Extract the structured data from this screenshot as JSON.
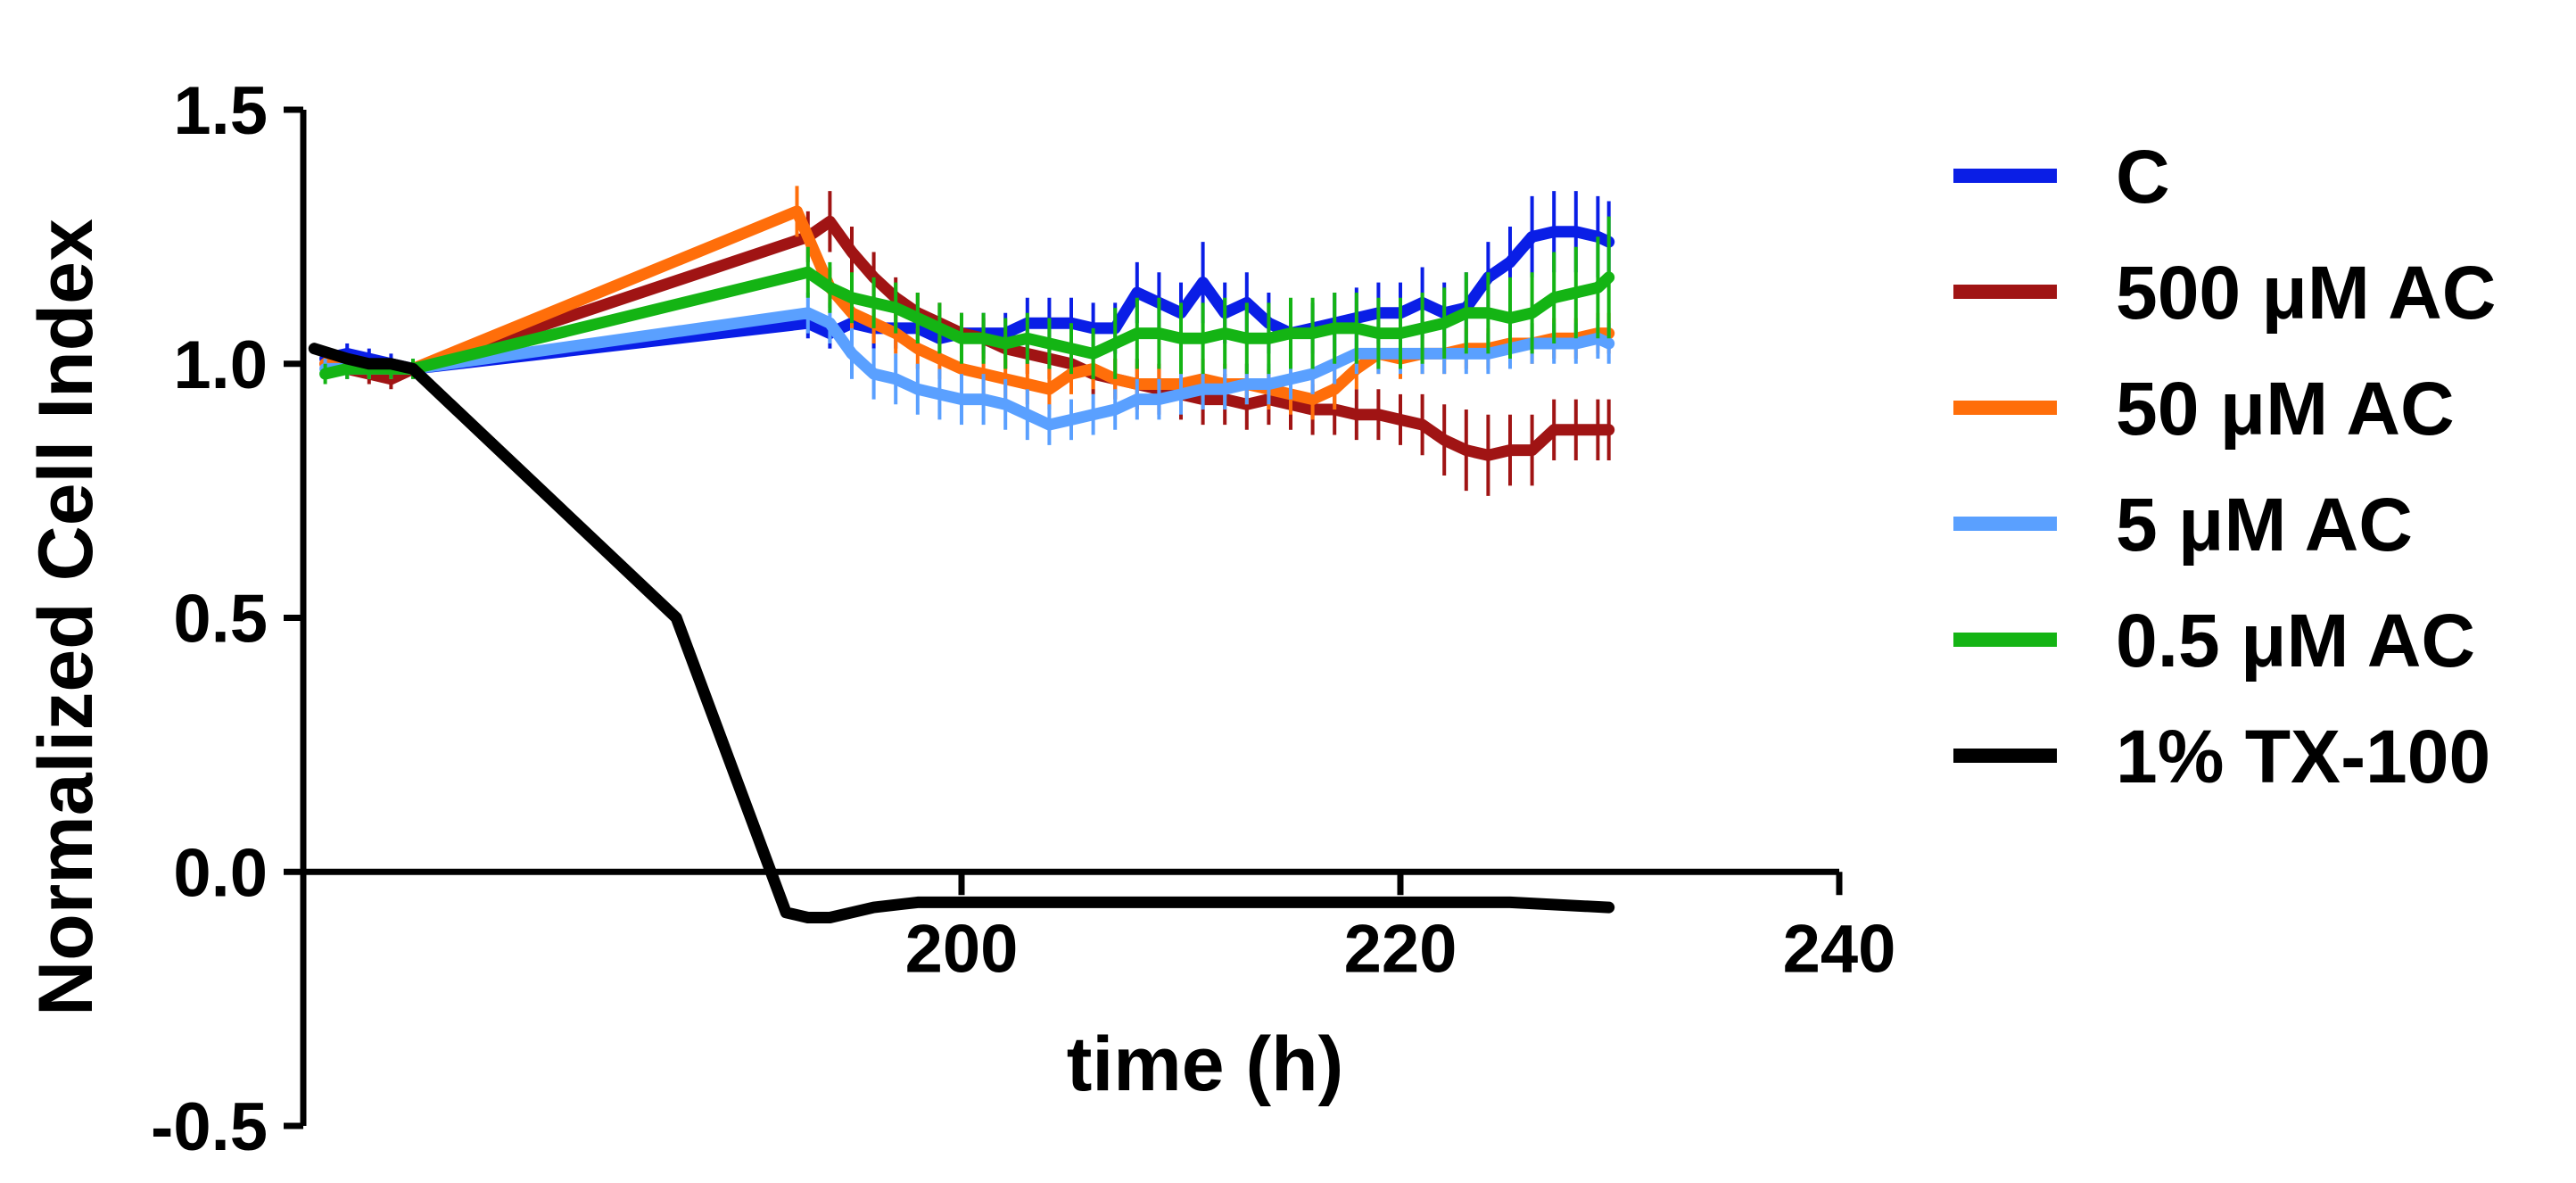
{
  "chart_data": {
    "type": "line",
    "title": "",
    "xlabel": "time (h)",
    "ylabel": "Normalized Cell Index",
    "xlim": [
      170,
      240
    ],
    "ylim": [
      -0.5,
      1.5
    ],
    "x_ticks": [
      200,
      220,
      240
    ],
    "x_tick_labels": [
      "200",
      "220",
      "240"
    ],
    "y_ticks": [
      -0.5,
      0.0,
      0.5,
      1.0,
      1.5
    ],
    "y_tick_labels": [
      "-0.5",
      "0.0",
      "0.5",
      "1.0",
      "1.5"
    ],
    "grid": false,
    "legend_position": "right",
    "series": [
      {
        "name": "C",
        "color": "#0a1ee6",
        "x": [
          171,
          172,
          173,
          174,
          175,
          193,
          194,
          195,
          196,
          197,
          198,
          199,
          200,
          201,
          202,
          203,
          204,
          205,
          206,
          207,
          208,
          209,
          210,
          211,
          212,
          213,
          214,
          215,
          216,
          217,
          218,
          219,
          220,
          221,
          222,
          223,
          224,
          225,
          226,
          227,
          228,
          229,
          229.5
        ],
        "y": [
          1.01,
          1.02,
          1.01,
          1.0,
          0.99,
          1.08,
          1.06,
          1.08,
          1.07,
          1.07,
          1.07,
          1.05,
          1.06,
          1.06,
          1.06,
          1.08,
          1.08,
          1.08,
          1.07,
          1.07,
          1.14,
          1.12,
          1.1,
          1.16,
          1.1,
          1.12,
          1.08,
          1.06,
          1.07,
          1.08,
          1.09,
          1.1,
          1.1,
          1.12,
          1.1,
          1.11,
          1.17,
          1.2,
          1.25,
          1.26,
          1.26,
          1.25,
          1.24
        ],
        "error": [
          0.02,
          0.02,
          0.02,
          0.02,
          0.01,
          0.03,
          0.03,
          0.04,
          0.04,
          0.04,
          0.04,
          0.04,
          0.04,
          0.04,
          0.04,
          0.05,
          0.05,
          0.05,
          0.05,
          0.05,
          0.06,
          0.06,
          0.06,
          0.08,
          0.06,
          0.06,
          0.06,
          0.05,
          0.05,
          0.06,
          0.06,
          0.06,
          0.06,
          0.07,
          0.06,
          0.07,
          0.07,
          0.07,
          0.08,
          0.08,
          0.08,
          0.08,
          0.08
        ]
      },
      {
        "name": "500 μM AC",
        "color": "#a01414",
        "x": [
          171,
          172,
          173,
          174,
          175,
          193,
          194,
          195,
          196,
          197,
          198,
          199,
          200,
          201,
          202,
          203,
          204,
          205,
          206,
          207,
          208,
          209,
          210,
          211,
          212,
          213,
          214,
          215,
          216,
          217,
          218,
          219,
          220,
          221,
          222,
          223,
          224,
          225,
          226,
          227,
          228,
          229,
          229.5
        ],
        "y": [
          1.0,
          0.99,
          0.98,
          0.97,
          0.99,
          1.25,
          1.28,
          1.22,
          1.17,
          1.13,
          1.1,
          1.08,
          1.06,
          1.05,
          1.03,
          1.02,
          1.01,
          1.0,
          0.98,
          0.97,
          0.96,
          0.95,
          0.94,
          0.93,
          0.93,
          0.92,
          0.93,
          0.92,
          0.91,
          0.91,
          0.9,
          0.9,
          0.89,
          0.88,
          0.85,
          0.83,
          0.82,
          0.83,
          0.83,
          0.87,
          0.87,
          0.87,
          0.87
        ],
        "error": [
          0.02,
          0.02,
          0.02,
          0.02,
          0.02,
          0.05,
          0.06,
          0.05,
          0.05,
          0.04,
          0.04,
          0.04,
          0.04,
          0.04,
          0.04,
          0.04,
          0.04,
          0.04,
          0.04,
          0.04,
          0.05,
          0.05,
          0.05,
          0.05,
          0.05,
          0.05,
          0.05,
          0.05,
          0.05,
          0.05,
          0.05,
          0.05,
          0.05,
          0.06,
          0.07,
          0.08,
          0.08,
          0.07,
          0.07,
          0.06,
          0.06,
          0.06,
          0.06
        ]
      },
      {
        "name": "50 μM AC",
        "color": "#ff6e0a",
        "x": [
          171,
          172,
          173,
          174,
          175,
          192.5,
          194,
          195,
          196,
          197,
          198,
          199,
          200,
          201,
          202,
          203,
          204,
          205,
          206,
          207,
          208,
          209,
          210,
          211,
          212,
          213,
          214,
          215,
          216,
          217,
          218,
          219,
          220,
          221,
          222,
          223,
          224,
          225,
          226,
          227,
          228,
          229,
          229.5
        ],
        "y": [
          1.0,
          1.0,
          0.99,
          0.99,
          0.99,
          1.3,
          1.15,
          1.1,
          1.08,
          1.06,
          1.03,
          1.01,
          0.99,
          0.98,
          0.97,
          0.96,
          0.95,
          0.98,
          0.99,
          0.97,
          0.96,
          0.96,
          0.96,
          0.97,
          0.96,
          0.96,
          0.95,
          0.94,
          0.93,
          0.95,
          0.99,
          1.02,
          1.01,
          1.02,
          1.02,
          1.03,
          1.03,
          1.04,
          1.04,
          1.05,
          1.05,
          1.06,
          1.06
        ],
        "error": [
          0.02,
          0.02,
          0.02,
          0.02,
          0.02,
          0.05,
          0.04,
          0.04,
          0.04,
          0.04,
          0.04,
          0.04,
          0.04,
          0.04,
          0.04,
          0.04,
          0.04,
          0.04,
          0.04,
          0.04,
          0.04,
          0.04,
          0.04,
          0.04,
          0.04,
          0.04,
          0.04,
          0.04,
          0.04,
          0.04,
          0.04,
          0.04,
          0.04,
          0.04,
          0.04,
          0.04,
          0.04,
          0.04,
          0.04,
          0.04,
          0.04,
          0.04,
          0.04
        ]
      },
      {
        "name": "5 μM AC",
        "color": "#5aa0ff",
        "x": [
          171,
          172,
          173,
          174,
          175,
          193,
          194,
          195,
          196,
          197,
          198,
          199,
          200,
          201,
          202,
          203,
          204,
          205,
          206,
          207,
          208,
          209,
          210,
          211,
          212,
          213,
          214,
          215,
          216,
          217,
          218,
          219,
          220,
          221,
          222,
          223,
          224,
          225,
          226,
          227,
          228,
          229,
          229.5
        ],
        "y": [
          0.99,
          0.99,
          0.99,
          0.99,
          0.99,
          1.1,
          1.08,
          1.02,
          0.98,
          0.97,
          0.95,
          0.94,
          0.93,
          0.93,
          0.92,
          0.9,
          0.88,
          0.89,
          0.9,
          0.91,
          0.93,
          0.93,
          0.94,
          0.95,
          0.95,
          0.96,
          0.96,
          0.97,
          0.98,
          1.0,
          1.02,
          1.02,
          1.02,
          1.02,
          1.02,
          1.02,
          1.02,
          1.03,
          1.04,
          1.04,
          1.04,
          1.05,
          1.04
        ],
        "error": [
          0.02,
          0.02,
          0.02,
          0.02,
          0.02,
          0.04,
          0.04,
          0.05,
          0.05,
          0.05,
          0.05,
          0.05,
          0.05,
          0.05,
          0.05,
          0.05,
          0.04,
          0.04,
          0.04,
          0.04,
          0.04,
          0.04,
          0.04,
          0.04,
          0.04,
          0.04,
          0.04,
          0.04,
          0.04,
          0.04,
          0.04,
          0.04,
          0.04,
          0.04,
          0.04,
          0.04,
          0.04,
          0.04,
          0.04,
          0.04,
          0.04,
          0.04,
          0.04
        ]
      },
      {
        "name": "0.5 μM AC",
        "color": "#14b414",
        "x": [
          171,
          172,
          173,
          174,
          175,
          193,
          194,
          195,
          196,
          197,
          198,
          199,
          200,
          201,
          202,
          203,
          204,
          205,
          206,
          207,
          208,
          209,
          210,
          211,
          212,
          213,
          214,
          215,
          216,
          217,
          218,
          219,
          220,
          221,
          222,
          223,
          224,
          225,
          226,
          227,
          228,
          229,
          229.5
        ],
        "y": [
          0.98,
          0.99,
          0.99,
          0.99,
          0.99,
          1.18,
          1.15,
          1.13,
          1.12,
          1.11,
          1.09,
          1.07,
          1.05,
          1.05,
          1.04,
          1.05,
          1.04,
          1.03,
          1.02,
          1.04,
          1.06,
          1.06,
          1.05,
          1.05,
          1.06,
          1.05,
          1.05,
          1.06,
          1.06,
          1.07,
          1.07,
          1.06,
          1.06,
          1.07,
          1.08,
          1.1,
          1.1,
          1.09,
          1.1,
          1.13,
          1.14,
          1.15,
          1.17
        ],
        "error": [
          0.02,
          0.02,
          0.02,
          0.02,
          0.02,
          0.05,
          0.05,
          0.05,
          0.05,
          0.05,
          0.05,
          0.05,
          0.05,
          0.05,
          0.05,
          0.05,
          0.05,
          0.05,
          0.05,
          0.07,
          0.07,
          0.07,
          0.07,
          0.07,
          0.07,
          0.07,
          0.07,
          0.07,
          0.07,
          0.07,
          0.07,
          0.07,
          0.07,
          0.07,
          0.07,
          0.08,
          0.08,
          0.08,
          0.08,
          0.09,
          0.09,
          0.1,
          0.12
        ]
      },
      {
        "name": "1% TX-100",
        "color": "#000000",
        "x": [
          170.5,
          172,
          173,
          174,
          175,
          187,
          192,
          193,
          194,
          196,
          198,
          200,
          205,
          210,
          215,
          220,
          225,
          229.5
        ],
        "y": [
          1.03,
          1.01,
          1.0,
          1.0,
          0.99,
          0.5,
          -0.08,
          -0.09,
          -0.09,
          -0.07,
          -0.06,
          -0.06,
          -0.06,
          -0.06,
          -0.06,
          -0.06,
          -0.06,
          -0.07
        ],
        "error": []
      }
    ]
  }
}
